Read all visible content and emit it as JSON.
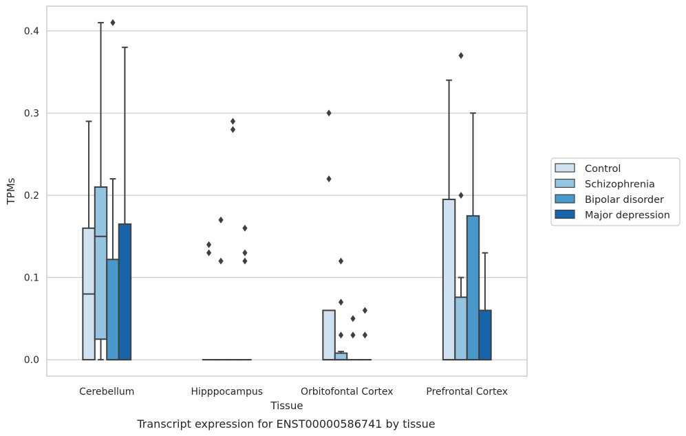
{
  "chart_data": {
    "type": "box",
    "xlabel": "Tissue",
    "ylabel": "TPMs",
    "caption": "Transcript expression for ENST00000586741 by tissue",
    "ylim": [
      -0.02,
      0.43
    ],
    "yticks": [
      0.0,
      0.1,
      0.2,
      0.3,
      0.4
    ],
    "ytick_labels": [
      "0.0",
      "0.1",
      "0.2",
      "0.3",
      "0.4"
    ],
    "grid": "horizontal",
    "legend_position": "right",
    "categories": [
      "Cerebellum",
      "Hipppocampus",
      "Orbitofontal Cortex",
      "Prefrontal Cortex"
    ],
    "series": [
      {
        "name": "Control",
        "color": "#d0e1f2",
        "boxes": [
          {
            "q1": 0.0,
            "median": 0.08,
            "q3": 0.16,
            "whisker_low": 0.0,
            "whisker_high": 0.29,
            "outliers": []
          },
          {
            "q1": 0.0,
            "median": 0.0,
            "q3": 0.0,
            "whisker_low": 0.0,
            "whisker_high": 0.0,
            "outliers": [
              0.13,
              0.14
            ]
          },
          {
            "q1": 0.0,
            "median": 0.0,
            "q3": 0.06,
            "whisker_low": 0.0,
            "whisker_high": 0.06,
            "outliers": [
              0.22,
              0.3
            ]
          },
          {
            "q1": 0.0,
            "median": 0.0,
            "q3": 0.195,
            "whisker_low": 0.0,
            "whisker_high": 0.34,
            "outliers": []
          }
        ]
      },
      {
        "name": "Schizophrenia",
        "color": "#94c4df",
        "boxes": [
          {
            "q1": 0.025,
            "median": 0.15,
            "q3": 0.21,
            "whisker_low": 0.0,
            "whisker_high": 0.41,
            "outliers": []
          },
          {
            "q1": 0.0,
            "median": 0.0,
            "q3": 0.0,
            "whisker_low": 0.0,
            "whisker_high": 0.0,
            "outliers": [
              0.12,
              0.17
            ]
          },
          {
            "q1": 0.0,
            "median": 0.0,
            "q3": 0.008,
            "whisker_low": 0.0,
            "whisker_high": 0.01,
            "outliers": [
              0.03,
              0.07,
              0.12
            ]
          },
          {
            "q1": 0.0,
            "median": 0.0,
            "q3": 0.076,
            "whisker_low": 0.0,
            "whisker_high": 0.1,
            "outliers": [
              0.2,
              0.37
            ]
          }
        ]
      },
      {
        "name": "Bipolar disorder",
        "color": "#4a98c9",
        "boxes": [
          {
            "q1": 0.0,
            "median": 0.0,
            "q3": 0.122,
            "whisker_low": 0.0,
            "whisker_high": 0.22,
            "outliers": [
              0.41
            ]
          },
          {
            "q1": 0.0,
            "median": 0.0,
            "q3": 0.0,
            "whisker_low": 0.0,
            "whisker_high": 0.0,
            "outliers": [
              0.28,
              0.29
            ]
          },
          {
            "q1": 0.0,
            "median": 0.0,
            "q3": 0.0,
            "whisker_low": 0.0,
            "whisker_high": 0.0,
            "outliers": [
              0.03,
              0.05
            ]
          },
          {
            "q1": 0.0,
            "median": 0.0,
            "q3": 0.175,
            "whisker_low": 0.0,
            "whisker_high": 0.3,
            "outliers": []
          }
        ]
      },
      {
        "name": "Major depression",
        "color": "#1764ab",
        "boxes": [
          {
            "q1": 0.0,
            "median": 0.0,
            "q3": 0.165,
            "whisker_low": 0.0,
            "whisker_high": 0.38,
            "outliers": []
          },
          {
            "q1": 0.0,
            "median": 0.0,
            "q3": 0.0,
            "whisker_low": 0.0,
            "whisker_high": 0.0,
            "outliers": [
              0.12,
              0.13,
              0.16
            ]
          },
          {
            "q1": 0.0,
            "median": 0.0,
            "q3": 0.0,
            "whisker_low": 0.0,
            "whisker_high": 0.0,
            "outliers": [
              0.03,
              0.06
            ]
          },
          {
            "q1": 0.0,
            "median": 0.0,
            "q3": 0.06,
            "whisker_low": 0.0,
            "whisker_high": 0.13,
            "outliers": []
          }
        ]
      }
    ]
  }
}
